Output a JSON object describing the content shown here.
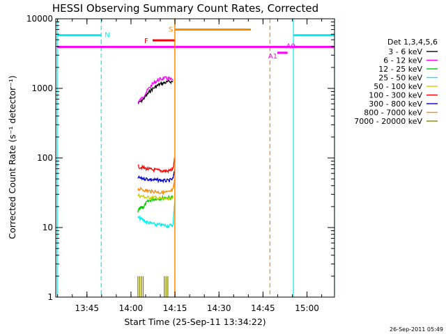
{
  "chart_data": {
    "type": "line",
    "title": "HESSI Observing Summary Count Rates, Corrected",
    "xlabel": "Start Time (25-Sep-11 13:34:22)",
    "ylabel": "Corrected Count Rate (s⁻¹ detector⁻¹)",
    "yscale": "log",
    "ylim": [
      1,
      10000
    ],
    "xlim_min_after_start": [
      0,
      95
    ],
    "yticks": [
      {
        "value": 1,
        "label": "1"
      },
      {
        "value": 10,
        "label": "10"
      },
      {
        "value": 100,
        "label": "100"
      },
      {
        "value": 1000,
        "label": "1000"
      },
      {
        "value": 10000,
        "label": "10000"
      }
    ],
    "xticks": [
      {
        "min": 10.63,
        "label": "13:45"
      },
      {
        "min": 25.63,
        "label": "14:00"
      },
      {
        "min": 40.63,
        "label": "14:15"
      },
      {
        "min": 55.63,
        "label": "14:30"
      },
      {
        "min": 70.63,
        "label": "14:45"
      },
      {
        "min": 85.63,
        "label": "15:00"
      }
    ],
    "legend_title": "Det 1,3,4,5,6",
    "legend_placement": "right, outside plot",
    "series": [
      {
        "name": "3 - 6 keV",
        "color": "#000000",
        "t": [
          28.0,
          29.5,
          31.0,
          32.5,
          34.0,
          35.5,
          37.0,
          38.5,
          40.0
        ],
        "values": [
          600,
          680,
          800,
          950,
          1050,
          1150,
          1200,
          1250,
          1250
        ]
      },
      {
        "name": "6 - 12 keV",
        "color": "#ff00ff",
        "t": [
          28.0,
          29.5,
          31.0,
          32.5,
          34.0,
          35.5,
          37.0,
          38.5,
          40.0
        ],
        "values": [
          640,
          730,
          900,
          1100,
          1250,
          1350,
          1400,
          1380,
          1300
        ]
      },
      {
        "name": "12 - 25 keV",
        "color": "#00cc00",
        "t": [
          28.0,
          29.0,
          30.0,
          31.0,
          32.5,
          34.0,
          35.5,
          37.0,
          38.5,
          40.0
        ],
        "values": [
          17,
          19,
          20,
          23,
          25,
          26,
          26,
          27,
          27,
          27
        ]
      },
      {
        "name": "25 - 50 keV",
        "color": "#00eeee",
        "t": [
          28.0,
          29.5,
          31.0,
          32.5,
          34.0,
          35.5,
          37.0,
          38.5,
          40.0,
          40.6
        ],
        "values": [
          14,
          13,
          12,
          11.5,
          11,
          11,
          10.8,
          10.5,
          11,
          25
        ]
      },
      {
        "name": "50 - 100 keV",
        "color": "#cccc00",
        "t": [
          28.0,
          29.5,
          31.0,
          32.5,
          34.0,
          35.5,
          37.0,
          38.5,
          40.0
        ],
        "values": [
          29,
          28,
          27,
          27,
          27,
          26,
          26,
          25,
          28
        ]
      },
      {
        "name": "100 - 300 keV",
        "color": "#ff0000",
        "t": [
          28.0,
          29.5,
          31.0,
          32.5,
          34.0,
          35.5,
          37.0,
          38.5,
          40.0,
          40.6
        ],
        "values": [
          75,
          73,
          70,
          68,
          67,
          66,
          65,
          65,
          70,
          100
        ]
      },
      {
        "name": "300 - 800 keV",
        "color": "#0000cc",
        "t": [
          28.0,
          29.5,
          31.0,
          32.5,
          34.0,
          35.5,
          37.0,
          38.5,
          40.0,
          40.6
        ],
        "values": [
          52,
          51,
          50,
          49,
          48,
          48,
          47,
          47,
          50,
          70
        ]
      },
      {
        "name": "800 - 7000 keV",
        "color": "#ff8800",
        "t": [
          28.0,
          29.5,
          31.0,
          32.5,
          34.0,
          35.5,
          37.0,
          38.5,
          40.0,
          40.6
        ],
        "values": [
          36,
          35,
          34,
          33,
          33,
          32,
          32,
          32,
          35,
          50
        ]
      },
      {
        "name": "7000 - 20000 keV",
        "color": "#888800",
        "t": [
          28.0,
          28.6,
          29.2,
          29.8,
          37.0,
          37.6,
          38.2
        ],
        "values": [
          2,
          2,
          2,
          2,
          2,
          2,
          2
        ]
      }
    ],
    "attenuator_state": {
      "time_min": 40.6,
      "color": "#ff8800"
    },
    "flags": [
      {
        "label": "N",
        "color": "#00eeee",
        "y": 5800,
        "t_start": 0.5,
        "t_end": 15.5
      },
      {
        "label": "N",
        "color": "#00eeee",
        "y": 5800,
        "t_start": 81.0,
        "t_end": 95.0
      },
      {
        "label": "S",
        "color": "#ff8800",
        "y": 7000,
        "t_start": 40.6,
        "t_end": 66.5
      },
      {
        "label": "F",
        "color": "#ff0000",
        "y": 4900,
        "t_start": 33.0,
        "t_end": 40.6
      },
      {
        "label": "A0",
        "color": "#ff00ff",
        "y": 3950,
        "t_start": 0.5,
        "t_end": 95.0
      },
      {
        "label": "A1",
        "color": "#ff00ff",
        "y": 3250,
        "t_start": 75.5,
        "t_end": 79.0
      }
    ],
    "night_boundaries": [
      {
        "t": 0.5,
        "style": "solid",
        "color": "#00eeee"
      },
      {
        "t": 15.5,
        "style": "dashed",
        "color": "#00eeee"
      },
      {
        "t": 81.0,
        "style": "solid",
        "color": "#00eeee"
      },
      {
        "t": 95.0,
        "style": "dashed",
        "color": "#00eeee"
      }
    ],
    "saa_boundaries": [
      {
        "t": 40.6,
        "style": "solid",
        "color": "#ff8800"
      },
      {
        "t": 73.0,
        "style": "dashed",
        "color": "#ff8800"
      }
    ],
    "timestamp": "26-Sep-2011 05:49"
  }
}
